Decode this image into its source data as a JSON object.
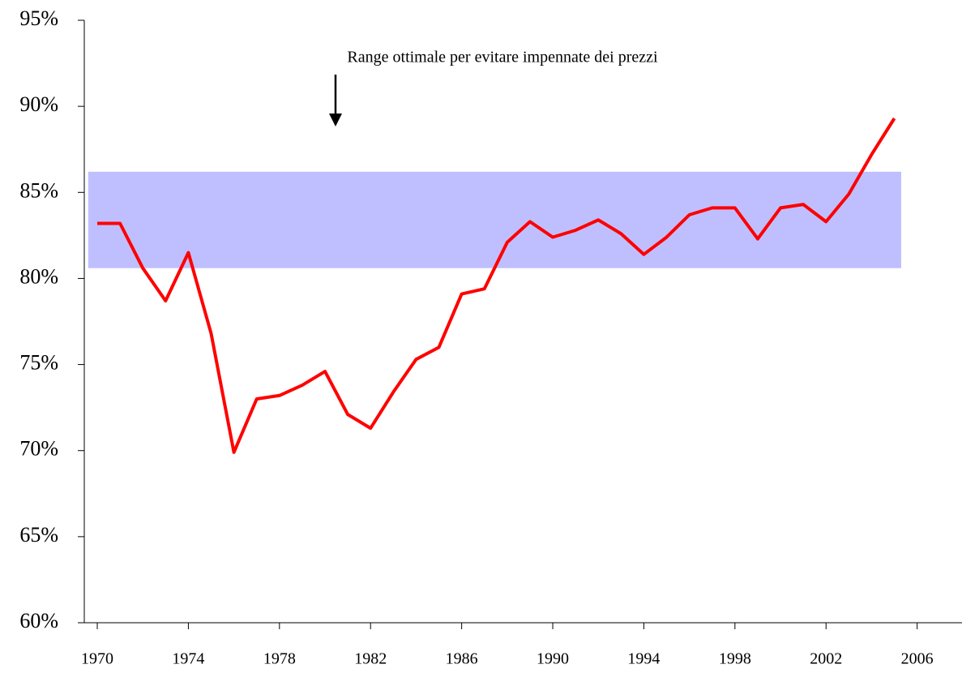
{
  "chart_data": {
    "type": "line",
    "annotation": "Range ottimale  per evitare impennate dei prezzi",
    "x": [
      1970,
      1971,
      1972,
      1973,
      1974,
      1975,
      1976,
      1977,
      1978,
      1979,
      1980,
      1981,
      1982,
      1983,
      1984,
      1985,
      1986,
      1987,
      1988,
      1989,
      1990,
      1991,
      1992,
      1993,
      1994,
      1995,
      1996,
      1997,
      1998,
      1999,
      2000,
      2001,
      2002,
      2003,
      2004,
      2005
    ],
    "series": [
      {
        "color": "#ff0000",
        "values": [
          83.2,
          83.2,
          80.6,
          78.7,
          81.5,
          76.8,
          69.9,
          73.0,
          73.2,
          73.8,
          74.6,
          72.1,
          71.3,
          73.4,
          75.3,
          76.0,
          79.1,
          79.4,
          82.1,
          83.3,
          82.4,
          82.8,
          83.4,
          82.6,
          81.4,
          82.4,
          83.7,
          84.1,
          84.1,
          82.3,
          84.1,
          84.3,
          83.3,
          84.9,
          87.2,
          89.3
        ]
      }
    ],
    "band": {
      "color": "#bfbfff",
      "x_from": 1969.6,
      "x_to": 2005.3,
      "y_from": 80.6,
      "y_to": 86.2
    },
    "xlim": [
      1969.43,
      2007.97
    ],
    "xticks": [
      1970,
      1974,
      1978,
      1982,
      1986,
      1990,
      1994,
      1998,
      2002,
      2006
    ],
    "ylim": [
      60,
      95
    ],
    "yticks": [
      {
        "value": 60,
        "label": "60%"
      },
      {
        "value": 65,
        "label": "65%"
      },
      {
        "value": 70,
        "label": "70%"
      },
      {
        "value": 75,
        "label": "75%"
      },
      {
        "value": 80,
        "label": "80%"
      },
      {
        "value": 85,
        "label": "85%"
      },
      {
        "value": 90,
        "label": "90%"
      },
      {
        "value": 95,
        "label": "95%"
      }
    ]
  }
}
